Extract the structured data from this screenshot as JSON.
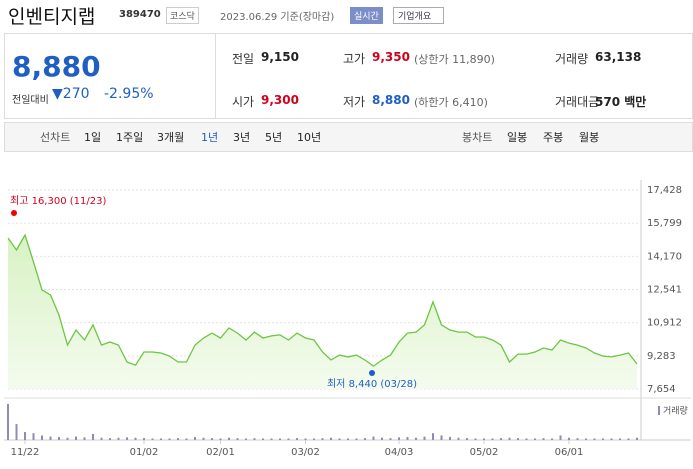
{
  "header": {
    "name": "인벤티지랩",
    "code": "389470",
    "market": "코스닥",
    "date": "2023.06.29 기준(장마감)",
    "realtime": "실시간",
    "overview": "기업개요"
  },
  "quote": {
    "price": "8,880",
    "change_label": "전일대비",
    "change": "270",
    "change_pct": "-2.95%"
  },
  "stats": [
    {
      "label": "전일",
      "value": "9,150"
    },
    {
      "label": "고가",
      "value": "9,350",
      "note": "(상한가 11,890)"
    },
    {
      "label": "거래량",
      "value": "63,138"
    },
    {
      "label": "시가",
      "value": "9,300"
    },
    {
      "label": "저가",
      "value": "8,880",
      "note": "(하한가 6,410)"
    },
    {
      "label": "거래대금",
      "value": "570 백만"
    }
  ],
  "tabs": {
    "line_label": "선차트",
    "periods": [
      "1일",
      "1주일",
      "3개월",
      "1년",
      "3년",
      "5년",
      "10년"
    ],
    "selected": "1년",
    "candle_label": "봉차트",
    "candles": [
      "일봉",
      "주봉",
      "월봉"
    ]
  },
  "chart_data": {
    "type": "line",
    "color": "#6cc644",
    "volume_color": "#8e8cb4",
    "categories": [
      null,
      null,
      "11/22",
      null,
      null,
      null,
      null,
      null,
      null,
      null,
      null,
      null,
      null,
      null,
      null,
      null,
      "01/02",
      null,
      null,
      null,
      null,
      null,
      null,
      null,
      null,
      "02/01",
      null,
      null,
      null,
      null,
      null,
      null,
      null,
      null,
      null,
      "03/02",
      null,
      null,
      null,
      null,
      null,
      null,
      null,
      null,
      null,
      null,
      "04/03",
      null,
      null,
      null,
      null,
      null,
      null,
      null,
      null,
      null,
      "05/02",
      null,
      null,
      null,
      null,
      null,
      null,
      null,
      null,
      null,
      "06/01",
      null,
      null,
      null,
      null,
      null,
      null,
      null,
      null
    ],
    "values": [
      15070,
      14480,
      15220,
      13890,
      12520,
      12270,
      11290,
      9810,
      10550,
      10060,
      10800,
      9810,
      9960,
      9810,
      8980,
      8830,
      9470,
      9470,
      9420,
      9270,
      8980,
      8980,
      9810,
      10160,
      10400,
      10160,
      10650,
      10400,
      10060,
      10450,
      10160,
      10260,
      10310,
      10060,
      10400,
      10160,
      10060,
      9470,
      9080,
      9320,
      9230,
      9320,
      9080,
      8780,
      9080,
      9320,
      9960,
      10400,
      10450,
      10800,
      11930,
      10800,
      10550,
      10450,
      10450,
      10210,
      10210,
      10060,
      9810,
      8980,
      9370,
      9370,
      9470,
      9670,
      9570,
      10060,
      9910,
      9810,
      9670,
      9420,
      9270,
      9230,
      9320,
      9420,
      8880
    ],
    "volume": [
      950000,
      420000,
      210000,
      180000,
      120000,
      90000,
      80000,
      60000,
      90000,
      70000,
      160000,
      60000,
      50000,
      60000,
      70000,
      60000,
      50000,
      40000,
      40000,
      40000,
      50000,
      40000,
      80000,
      60000,
      50000,
      40000,
      60000,
      50000,
      40000,
      50000,
      40000,
      40000,
      40000,
      40000,
      50000,
      40000,
      40000,
      50000,
      60000,
      40000,
      40000,
      40000,
      50000,
      90000,
      60000,
      50000,
      70000,
      80000,
      60000,
      90000,
      180000,
      120000,
      80000,
      60000,
      50000,
      40000,
      40000,
      40000,
      50000,
      60000,
      50000,
      40000,
      40000,
      50000,
      40000,
      120000,
      60000,
      50000,
      40000,
      40000,
      40000,
      40000,
      40000,
      40000,
      60000
    ],
    "volume_label": "거래량",
    "ylim": [
      7654,
      17428
    ],
    "yticks": [
      {
        "value": 7654,
        "label": "7,654"
      },
      {
        "value": 9283,
        "label": "9,283"
      },
      {
        "value": 10912,
        "label": "10,912"
      },
      {
        "value": 12541,
        "label": "12,541"
      },
      {
        "value": 14170,
        "label": "14,170"
      },
      {
        "value": 15799,
        "label": "15,799"
      },
      {
        "value": 17428,
        "label": "17,428"
      }
    ],
    "high": {
      "value": 16300,
      "text": "최고 16,300 (11/23)"
    },
    "low": {
      "value": 8440,
      "text": "최저 8,440 (03/28)"
    }
  }
}
